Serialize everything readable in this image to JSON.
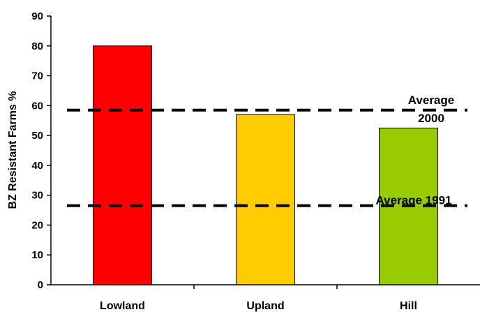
{
  "chart_data": {
    "type": "bar",
    "title": "",
    "xlabel": "",
    "ylabel": "BZ Resistant Farms %",
    "categories": [
      "Lowland",
      "Upland",
      "Hill"
    ],
    "values": [
      80,
      57,
      52.5
    ],
    "bar_colors": [
      "#ff0000",
      "#ffcc00",
      "#99cc00"
    ],
    "ylim": [
      0,
      90
    ],
    "yticks": [
      0,
      10,
      20,
      30,
      40,
      50,
      60,
      70,
      80,
      90
    ],
    "grid": false,
    "reference_lines": [
      {
        "label": "Average 2000",
        "label_lines": [
          "Average",
          "2000"
        ],
        "value": 58.5
      },
      {
        "label": "Average 1991",
        "label_lines": [
          "Average 1991"
        ],
        "value": 26.5
      }
    ]
  }
}
